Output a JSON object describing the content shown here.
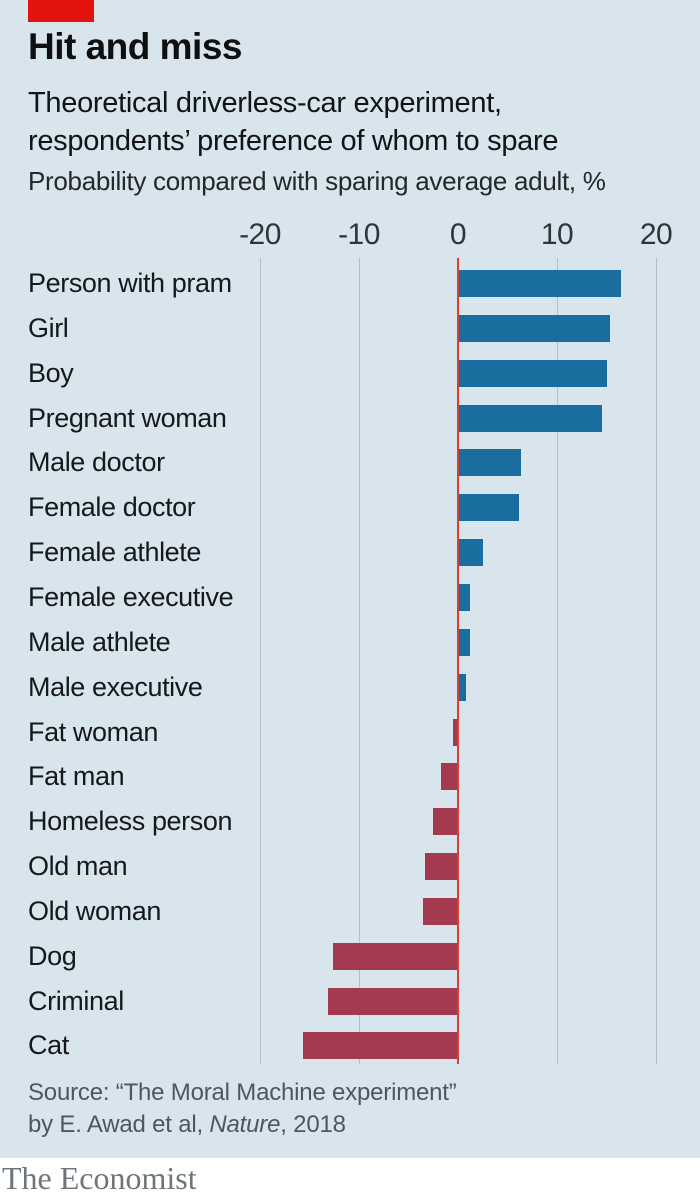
{
  "header": {
    "title": "Hit and miss",
    "subtitle_line1": "Theoretical driverless-car experiment,",
    "subtitle_line2": "respondents’ preference of whom to spare",
    "unit_note": "Probability compared with sparing average adult, %",
    "brand_color": "#e3120b"
  },
  "chart_data": {
    "type": "bar",
    "orientation": "horizontal",
    "title": "Hit and miss",
    "subtitle": "Theoretical driverless-car experiment, respondents’ preference of whom to spare",
    "xlabel": "Probability compared with sparing average adult, %",
    "xlim": [
      -20,
      20
    ],
    "x_ticks": [
      -20,
      -10,
      0,
      10,
      20
    ],
    "x_tick_labels": [
      "-20",
      "-10",
      "0",
      "10",
      "20"
    ],
    "grid": true,
    "legend": false,
    "categories": [
      "Person with pram",
      "Girl",
      "Boy",
      "Pregnant woman",
      "Male doctor",
      "Female doctor",
      "Female athlete",
      "Female executive",
      "Male athlete",
      "Male executive",
      "Fat woman",
      "Fat man",
      "Homeless person",
      "Old man",
      "Old woman",
      "Dog",
      "Criminal",
      "Cat"
    ],
    "values": [
      16.5,
      15.4,
      15.0,
      14.5,
      6.4,
      6.2,
      2.5,
      1.2,
      1.2,
      0.8,
      -0.5,
      -1.7,
      -2.5,
      -3.3,
      -3.5,
      -12.6,
      -13.1,
      -15.7
    ],
    "positive_color": "#1a6d9f",
    "negative_color": "#a43a50",
    "zero_line_color": "#d9402f",
    "gridline_color": "#afc0c9",
    "background_color": "#d9e5ec"
  },
  "source": {
    "line1": "Source: “The Moral Machine experiment”",
    "line2_prefix": "by E. Awad et al, ",
    "line2_italic": "Nature",
    "line2_suffix": ", 2018"
  },
  "footer": {
    "wordmark": "The Economist"
  }
}
